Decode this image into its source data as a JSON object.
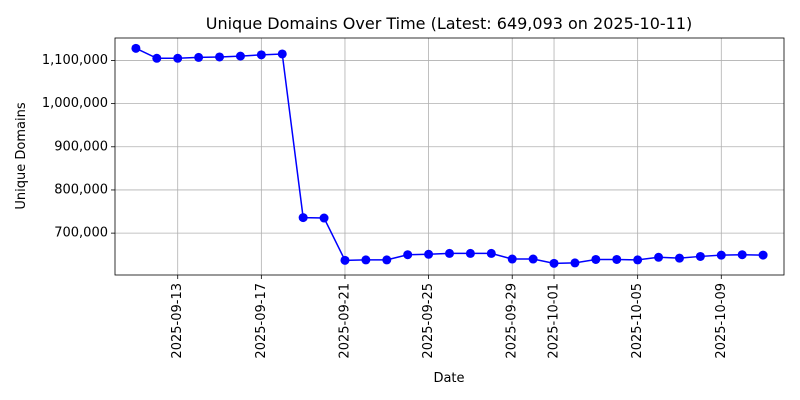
{
  "chart_data": {
    "type": "line",
    "title": "Unique Domains Over Time (Latest: 649,093 on 2025-10-11)",
    "xlabel": "Date",
    "ylabel": "Unique Domains",
    "grid": true,
    "line_color": "#0000ff",
    "marker": "circle",
    "x_ticks": [
      "2025-09-13",
      "2025-09-17",
      "2025-09-21",
      "2025-09-25",
      "2025-09-29",
      "2025-10-01",
      "2025-10-05",
      "2025-10-09"
    ],
    "y_ticks": [
      700000,
      800000,
      900000,
      1000000,
      1100000
    ],
    "y_tick_labels": [
      "700,000",
      "800,000",
      "900,000",
      "1,000,000",
      "1,100,000"
    ],
    "ylim": [
      603000,
      1152000
    ],
    "xlim": [
      "2025-09-10",
      "2025-10-12"
    ],
    "x": [
      "2025-09-11",
      "2025-09-12",
      "2025-09-13",
      "2025-09-14",
      "2025-09-15",
      "2025-09-16",
      "2025-09-17",
      "2025-09-18",
      "2025-09-19",
      "2025-09-20",
      "2025-09-21",
      "2025-09-22",
      "2025-09-23",
      "2025-09-24",
      "2025-09-25",
      "2025-09-26",
      "2025-09-27",
      "2025-09-28",
      "2025-09-29",
      "2025-09-30",
      "2025-10-01",
      "2025-10-02",
      "2025-10-03",
      "2025-10-04",
      "2025-10-05",
      "2025-10-06",
      "2025-10-07",
      "2025-10-08",
      "2025-10-09",
      "2025-10-10",
      "2025-10-11"
    ],
    "values": [
      1128000,
      1105000,
      1105000,
      1107000,
      1108000,
      1110000,
      1113000,
      1115000,
      736000,
      735000,
      637000,
      638000,
      638000,
      650000,
      651000,
      653000,
      653000,
      653000,
      640000,
      640000,
      630000,
      631000,
      639000,
      639000,
      638000,
      644000,
      642000,
      646000,
      649000,
      650000,
      649093
    ]
  }
}
